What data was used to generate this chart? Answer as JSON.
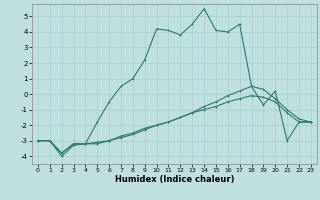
{
  "xlabel": "Humidex (Indice chaleur)",
  "ylabel": "",
  "background_color": "#c0e0e0",
  "grid_color": "#a8cccc",
  "line_color": "#2a7a6a",
  "xlim": [
    -0.5,
    23.5
  ],
  "ylim": [
    -4.5,
    5.8
  ],
  "xticks": [
    0,
    1,
    2,
    3,
    4,
    5,
    6,
    7,
    8,
    9,
    10,
    11,
    12,
    13,
    14,
    15,
    16,
    17,
    18,
    19,
    20,
    21,
    22,
    23
  ],
  "yticks": [
    -4,
    -3,
    -2,
    -1,
    0,
    1,
    2,
    3,
    4,
    5
  ],
  "line1_x": [
    0,
    1,
    2,
    3,
    4,
    5,
    6,
    7,
    8,
    9,
    10,
    11,
    12,
    13,
    14,
    15,
    16,
    17,
    18,
    19,
    20,
    21,
    22,
    23
  ],
  "line1_y": [
    -3.0,
    -3.0,
    -3.8,
    -3.2,
    -3.2,
    -3.2,
    -3.0,
    -2.7,
    -2.5,
    -2.2,
    -2.0,
    -1.8,
    -1.5,
    -1.2,
    -1.0,
    -0.8,
    -0.5,
    -0.3,
    -0.1,
    -0.2,
    -0.5,
    -1.2,
    -1.8,
    -1.8
  ],
  "line2_x": [
    0,
    1,
    2,
    3,
    4,
    5,
    6,
    7,
    8,
    9,
    10,
    11,
    12,
    13,
    14,
    15,
    16,
    17,
    18,
    19,
    20,
    21,
    22,
    23
  ],
  "line2_y": [
    -3.0,
    -3.0,
    -4.0,
    -3.3,
    -3.2,
    -3.1,
    -3.0,
    -2.8,
    -2.6,
    -2.3,
    -2.0,
    -1.8,
    -1.5,
    -1.2,
    -0.8,
    -0.5,
    -0.1,
    0.2,
    0.5,
    0.3,
    -0.3,
    -1.0,
    -1.6,
    -1.8
  ],
  "line3_x": [
    0,
    1,
    2,
    3,
    4,
    5,
    6,
    7,
    8,
    9,
    10,
    11,
    12,
    13,
    14,
    15,
    16,
    17,
    18,
    19,
    20,
    21,
    22,
    23
  ],
  "line3_y": [
    -3.0,
    -3.0,
    -3.8,
    -3.2,
    -3.2,
    -1.8,
    -0.5,
    0.5,
    1.0,
    2.2,
    4.2,
    4.1,
    3.8,
    4.5,
    5.5,
    4.1,
    4.0,
    4.5,
    0.5,
    -0.7,
    0.2,
    -3.0,
    -1.8,
    -1.8
  ]
}
